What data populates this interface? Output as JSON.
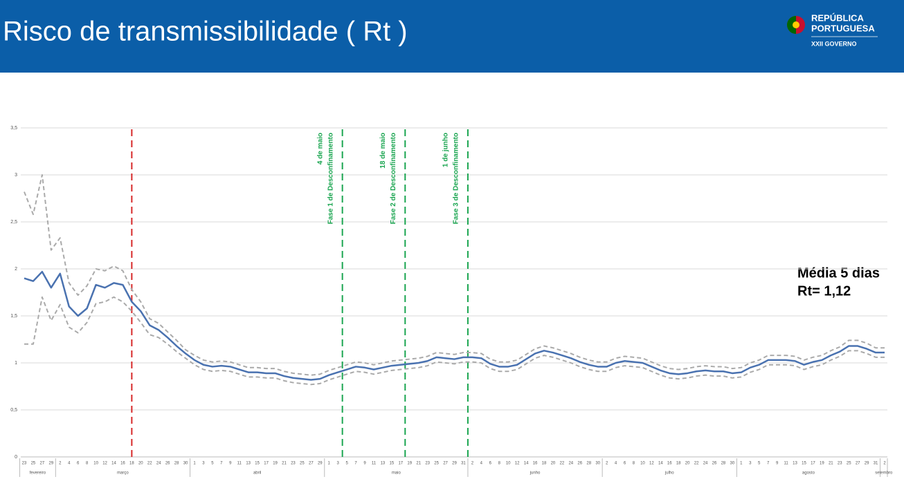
{
  "header": {
    "title": "Risco de transmissibilidade ( Rt )",
    "logo": [
      "REPÚBLICA",
      "PORTUGUESA",
      "XXII GOVERNO"
    ]
  },
  "chart_data": {
    "type": "line",
    "categories": [
      "23",
      "25",
      "27",
      "29",
      "2",
      "4",
      "6",
      "8",
      "10",
      "12",
      "14",
      "16",
      "18",
      "20",
      "22",
      "24",
      "26",
      "28",
      "30",
      "1",
      "3",
      "5",
      "7",
      "9",
      "11",
      "13",
      "15",
      "17",
      "19",
      "21",
      "23",
      "25",
      "27",
      "29",
      "1",
      "3",
      "5",
      "7",
      "9",
      "11",
      "13",
      "15",
      "17",
      "19",
      "21",
      "23",
      "25",
      "27",
      "29",
      "31",
      "2",
      "4",
      "6",
      "8",
      "10",
      "12",
      "14",
      "16",
      "18",
      "20",
      "22",
      "24",
      "26",
      "28",
      "30",
      "2",
      "4",
      "6",
      "8",
      "10",
      "12",
      "14",
      "16",
      "18",
      "20",
      "22",
      "24",
      "26",
      "28",
      "30",
      "1",
      "3",
      "5",
      "7",
      "9",
      "11",
      "13",
      "15",
      "17",
      "19",
      "21",
      "23",
      "25",
      "27",
      "29",
      "31",
      "2"
    ],
    "months": [
      {
        "label": "fevereiro",
        "start": 0
      },
      {
        "label": "março",
        "start": 4
      },
      {
        "label": "abril",
        "start": 19
      },
      {
        "label": "maio",
        "start": 34
      },
      {
        "label": "junho",
        "start": 50
      },
      {
        "label": "julho",
        "start": 65
      },
      {
        "label": "agosto",
        "start": 80
      },
      {
        "label": "setembro",
        "start": 96
      }
    ],
    "series": [
      {
        "color": "#aaaaaa",
        "dashed": true,
        "values": [
          2.82,
          2.58,
          3.0,
          2.2,
          2.33,
          1.85,
          1.72,
          1.82,
          2.0,
          1.98,
          2.03,
          1.98,
          1.78,
          1.65,
          1.47,
          1.42,
          1.33,
          1.24,
          1.14,
          1.08,
          1.03,
          1.01,
          1.02,
          1.01,
          0.98,
          0.95,
          0.95,
          0.94,
          0.94,
          0.91,
          0.89,
          0.88,
          0.87,
          0.88,
          0.92,
          0.95,
          0.98,
          1.01,
          1.0,
          0.98,
          1.0,
          1.02,
          1.03,
          1.04,
          1.05,
          1.07,
          1.11,
          1.1,
          1.09,
          1.11,
          1.11,
          1.1,
          1.04,
          1.01,
          1.01,
          1.03,
          1.09,
          1.15,
          1.18,
          1.16,
          1.13,
          1.1,
          1.06,
          1.03,
          1.01,
          1.01,
          1.05,
          1.07,
          1.06,
          1.05,
          1.01,
          0.97,
          0.94,
          0.93,
          0.94,
          0.96,
          0.97,
          0.96,
          0.96,
          0.94,
          0.95,
          1.0,
          1.03,
          1.08,
          1.08,
          1.08,
          1.07,
          1.03,
          1.06,
          1.08,
          1.13,
          1.17,
          1.24,
          1.24,
          1.21,
          1.16,
          1.16
        ]
      },
      {
        "color": "#aaaaaa",
        "dashed": true,
        "values": [
          1.2,
          1.2,
          1.7,
          1.45,
          1.62,
          1.38,
          1.32,
          1.43,
          1.63,
          1.65,
          1.7,
          1.65,
          1.55,
          1.43,
          1.3,
          1.27,
          1.2,
          1.12,
          1.05,
          0.98,
          0.93,
          0.91,
          0.92,
          0.91,
          0.88,
          0.85,
          0.85,
          0.84,
          0.84,
          0.81,
          0.79,
          0.78,
          0.77,
          0.78,
          0.82,
          0.85,
          0.88,
          0.91,
          0.9,
          0.88,
          0.9,
          0.92,
          0.93,
          0.94,
          0.95,
          0.97,
          1.01,
          1.0,
          0.99,
          1.01,
          1.01,
          1.0,
          0.94,
          0.91,
          0.91,
          0.93,
          0.99,
          1.05,
          1.08,
          1.06,
          1.03,
          1.0,
          0.96,
          0.93,
          0.91,
          0.91,
          0.95,
          0.97,
          0.96,
          0.95,
          0.91,
          0.87,
          0.84,
          0.83,
          0.84,
          0.86,
          0.87,
          0.86,
          0.86,
          0.84,
          0.85,
          0.9,
          0.93,
          0.98,
          0.98,
          0.98,
          0.97,
          0.93,
          0.96,
          0.98,
          1.03,
          1.07,
          1.13,
          1.13,
          1.1,
          1.06,
          1.06
        ]
      },
      {
        "color": "#4a72b0",
        "dashed": false,
        "values": [
          1.9,
          1.87,
          1.97,
          1.8,
          1.95,
          1.6,
          1.5,
          1.58,
          1.83,
          1.8,
          1.85,
          1.83,
          1.65,
          1.55,
          1.4,
          1.35,
          1.27,
          1.18,
          1.1,
          1.03,
          0.98,
          0.96,
          0.97,
          0.96,
          0.93,
          0.9,
          0.9,
          0.89,
          0.89,
          0.86,
          0.84,
          0.83,
          0.82,
          0.83,
          0.87,
          0.9,
          0.93,
          0.96,
          0.95,
          0.93,
          0.95,
          0.97,
          0.98,
          0.99,
          1.0,
          1.02,
          1.06,
          1.05,
          1.04,
          1.06,
          1.06,
          1.05,
          0.99,
          0.96,
          0.96,
          0.98,
          1.04,
          1.1,
          1.13,
          1.11,
          1.08,
          1.05,
          1.01,
          0.98,
          0.96,
          0.96,
          1.0,
          1.02,
          1.01,
          1.0,
          0.96,
          0.92,
          0.89,
          0.88,
          0.89,
          0.91,
          0.92,
          0.91,
          0.91,
          0.89,
          0.9,
          0.95,
          0.98,
          1.03,
          1.03,
          1.03,
          1.02,
          0.98,
          1.01,
          1.03,
          1.08,
          1.12,
          1.18,
          1.18,
          1.15,
          1.11,
          1.11
        ]
      }
    ],
    "ylim": [
      0,
      3.5
    ],
    "yticks": [
      0,
      {
        "value": 0.5,
        "label": "0,5"
      },
      1,
      {
        "value": 1.5,
        "label": "1,5"
      },
      2,
      {
        "value": 2.5,
        "label": "2,5"
      },
      3,
      {
        "value": 3.5,
        "label": "3,5"
      }
    ],
    "grid": true,
    "vlines": [
      {
        "x": 12,
        "color": "#d62728"
      },
      {
        "x": 35.5,
        "color": "#1aa550",
        "label": [
          "4 de maio",
          "Fase 1 de Desconfinamento"
        ]
      },
      {
        "x": 42.5,
        "color": "#1aa550",
        "label": [
          "18 de maio",
          "Fase 2 de Desconfinamento"
        ]
      },
      {
        "x": 49.5,
        "color": "#1aa550",
        "label": [
          "1 de junho",
          "Fase 3 de Desconfinamento"
        ]
      }
    ],
    "annotation": [
      "Média 5 dias",
      "Rt= 1,12"
    ]
  }
}
